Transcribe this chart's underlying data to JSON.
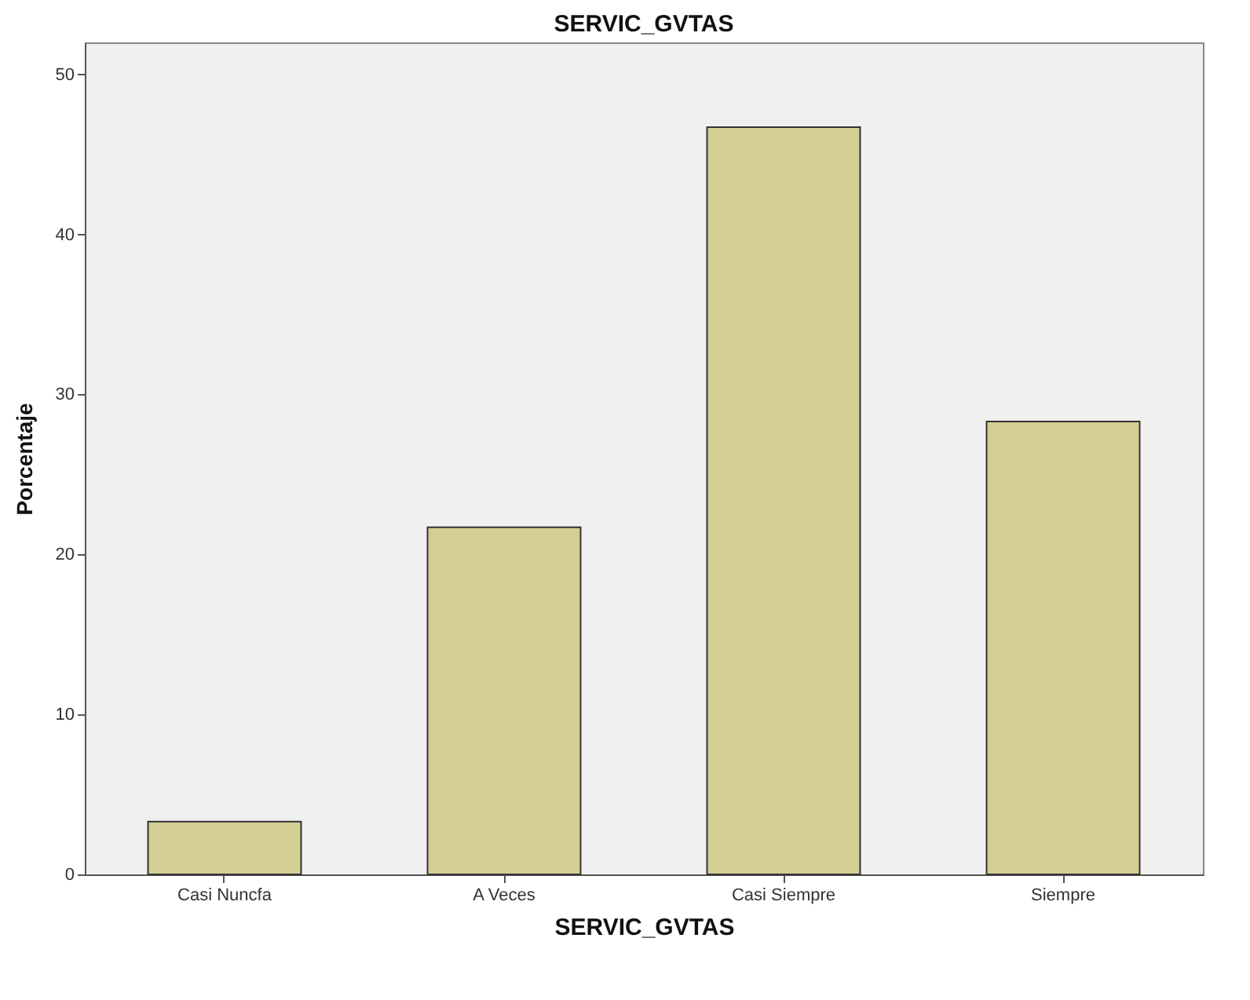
{
  "chart_data": {
    "type": "bar",
    "title": "SERVIC_GVTAS",
    "xlabel": "SERVIC_GVTAS",
    "ylabel": "Porcentaje",
    "categories": [
      "Casi Nuncfa",
      "A Veces",
      "Casi Siempre",
      "Siempre"
    ],
    "values": [
      3.3,
      21.7,
      46.7,
      28.3
    ],
    "color": "#d3cf94",
    "ylim": [
      0,
      52
    ],
    "yticks": [
      0,
      10,
      20,
      30,
      40,
      50
    ],
    "grid": false
  }
}
